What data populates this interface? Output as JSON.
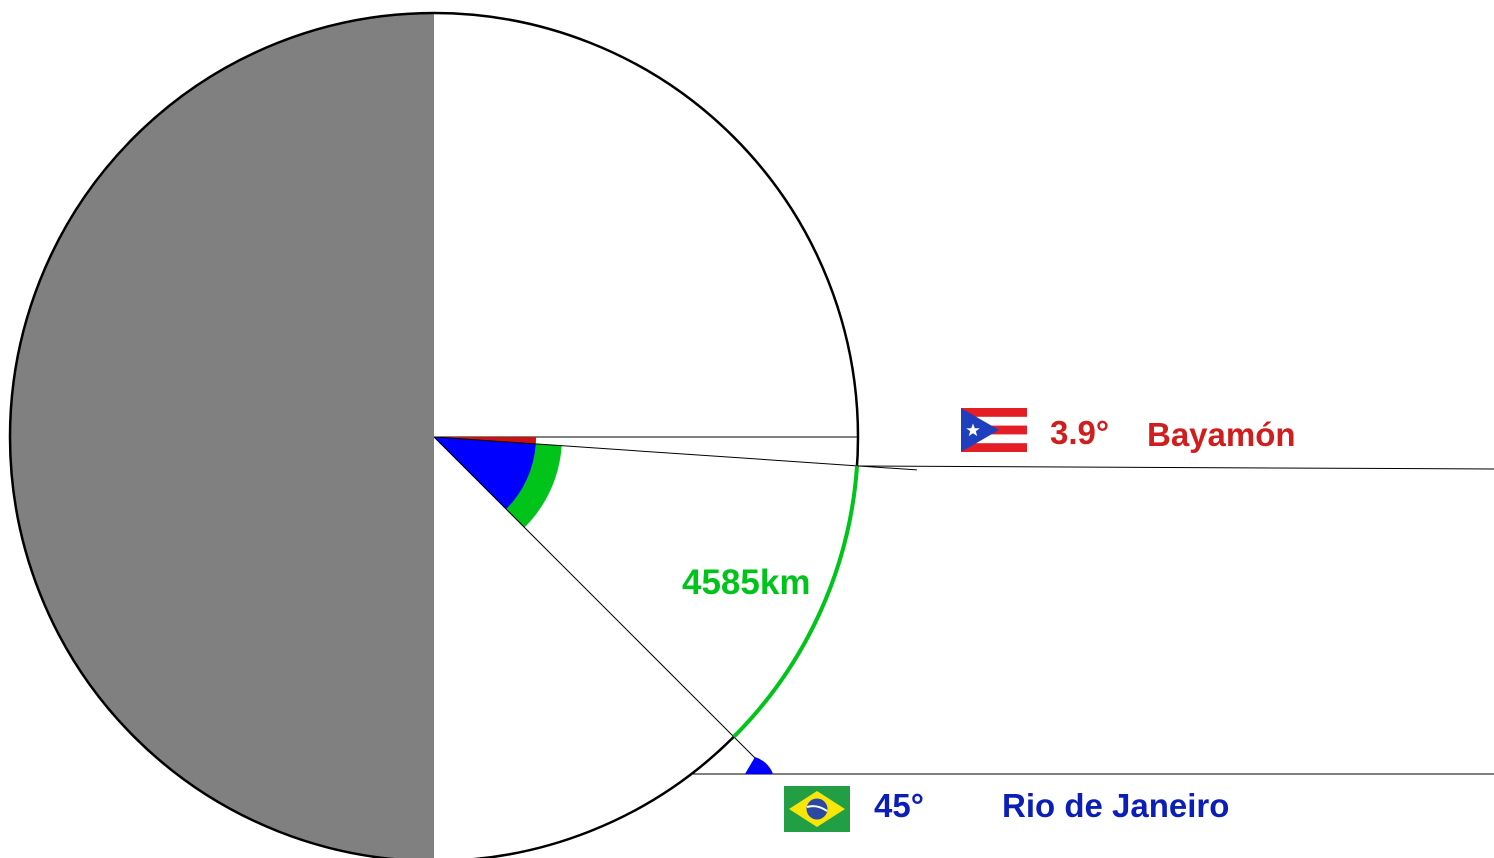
{
  "colors": {
    "background": "#ffffff",
    "night_side": "#808080",
    "outline": "#000000",
    "distance_arc": "#00c41a",
    "bayamon_accent": "#d01e1e",
    "rio_accent": "#0b1fb8",
    "angle_blue": "#0000ff",
    "angle_red": "#cc1111"
  },
  "bayamon": {
    "latitude_label": "3.9°",
    "name": "Bayamón",
    "latitude_deg": 3.9,
    "hemisphere": "north",
    "flag_icon": "puerto-rico-flag"
  },
  "rio": {
    "latitude_label": "45°",
    "name": "Rio de Janeiro",
    "latitude_deg": 45,
    "hemisphere": "south",
    "flag_icon": "brazil-flag"
  },
  "distance": {
    "label": "4585km",
    "km": 4585
  }
}
